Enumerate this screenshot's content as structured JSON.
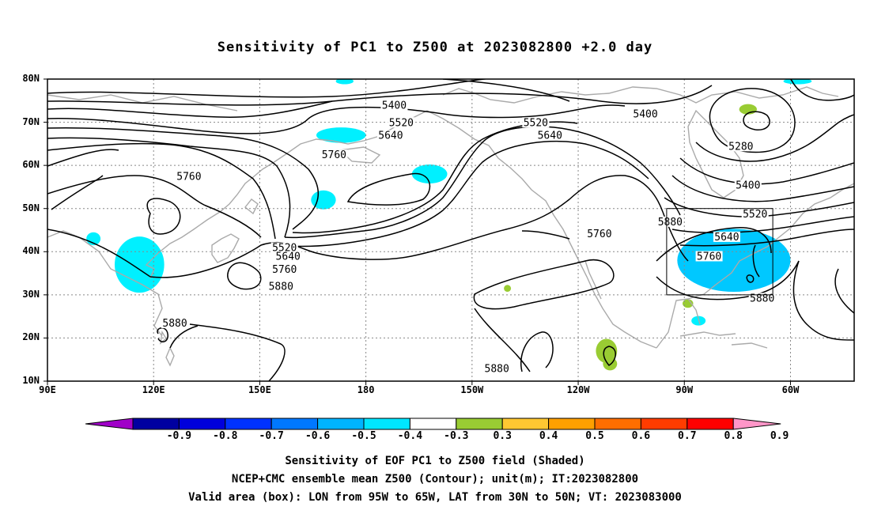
{
  "title": "Sensitivity of PC1 to Z500 at 2023082800 +2.0 day",
  "lat_labels": [
    "80N",
    "70N",
    "60N",
    "50N",
    "40N",
    "30N",
    "20N",
    "10N"
  ],
  "lon_labels": [
    "90E",
    "120E",
    "150E",
    "180",
    "150W",
    "120W",
    "90W",
    "60W"
  ],
  "contour_labels": [
    {
      "text": "5400",
      "lon": -172,
      "lat": 73.5
    },
    {
      "text": "5400",
      "lon": -101,
      "lat": 71.5
    },
    {
      "text": "5280",
      "lon": -74,
      "lat": 64
    },
    {
      "text": "5400",
      "lon": -72,
      "lat": 55
    },
    {
      "text": "5520",
      "lon": -70,
      "lat": 48.3
    },
    {
      "text": "5640",
      "lon": -78,
      "lat": 43
    },
    {
      "text": "5520",
      "lon": -170,
      "lat": 69.5
    },
    {
      "text": "5640",
      "lon": -173,
      "lat": 66.5
    },
    {
      "text": "5520",
      "lon": -132,
      "lat": 69.5
    },
    {
      "text": "5640",
      "lon": -128,
      "lat": 66.5
    },
    {
      "text": "5760",
      "lon": -189,
      "lat": 62
    },
    {
      "text": "5760",
      "lon": -230,
      "lat": 57
    },
    {
      "text": "5520",
      "lon": -203,
      "lat": 40.5
    },
    {
      "text": "5640",
      "lon": -202,
      "lat": 38.5
    },
    {
      "text": "5760",
      "lon": -203,
      "lat": 35.5
    },
    {
      "text": "5880",
      "lon": -204,
      "lat": 31.5
    },
    {
      "text": "5760",
      "lon": -114,
      "lat": 43.7
    },
    {
      "text": "5880",
      "lon": -94,
      "lat": 46.5
    },
    {
      "text": "5760",
      "lon": -83,
      "lat": 38.5
    },
    {
      "text": "5880",
      "lon": -68,
      "lat": 28.8
    },
    {
      "text": "5880",
      "lon": -234,
      "lat": 23
    },
    {
      "text": "5880",
      "lon": -143,
      "lat": 12.5
    }
  ],
  "valid_box": {
    "lon_west": -95,
    "lon_east": -65,
    "lat_south": 30,
    "lat_north": 50
  },
  "shading": [
    {
      "lon": -74,
      "lat": 37,
      "rx": 5,
      "ry": 2.8,
      "color": "#0000d0"
    },
    {
      "lon": -77,
      "lat": 38,
      "rx": 8,
      "ry": 4.5,
      "color": "#0030ff"
    },
    {
      "lon": -76,
      "lat": 38,
      "rx": 11,
      "ry": 5.5,
      "color": "#0064ff"
    },
    {
      "lon": -76,
      "lat": 38,
      "rx": 14,
      "ry": 6.5,
      "color": "#0096ff"
    },
    {
      "lon": -76,
      "lat": 38,
      "rx": 16,
      "ry": 7.3,
      "color": "#00c8ff"
    },
    {
      "lon": -244,
      "lat": 36,
      "rx": 5,
      "ry": 4.5,
      "color": "#00c8ff"
    },
    {
      "lon": -244,
      "lat": 37,
      "rx": 7,
      "ry": 6.5,
      "color": "#00f0ff"
    },
    {
      "lon": -257,
      "lat": 43,
      "rx": 2,
      "ry": 1.5,
      "color": "#00f0ff"
    },
    {
      "lon": -187,
      "lat": 67,
      "rx": 7,
      "ry": 1.8,
      "color": "#00f0ff"
    },
    {
      "lon": -192,
      "lat": 52,
      "rx": 3.5,
      "ry": 2.2,
      "color": "#00f0ff"
    },
    {
      "lon": -162,
      "lat": 58,
      "rx": 5,
      "ry": 2.2,
      "color": "#00f0ff"
    },
    {
      "lon": -186,
      "lat": 79.5,
      "rx": 2.5,
      "ry": 0.7,
      "color": "#00f0ff"
    },
    {
      "lon": -58,
      "lat": 79.5,
      "rx": 4,
      "ry": 0.7,
      "color": "#00f0ff"
    },
    {
      "lon": -86,
      "lat": 24,
      "rx": 2,
      "ry": 1.1,
      "color": "#00f0ff"
    },
    {
      "lon": -112,
      "lat": 17,
      "rx": 3,
      "ry": 2.8,
      "color": "#99cc33"
    },
    {
      "lon": -111,
      "lat": 14,
      "rx": 2,
      "ry": 1.5,
      "color": "#99cc33"
    },
    {
      "lon": -72,
      "lat": 73,
      "rx": 2.5,
      "ry": 1.2,
      "color": "#99cc33"
    },
    {
      "lon": -89,
      "lat": 28,
      "rx": 1.5,
      "ry": 1,
      "color": "#99cc33"
    },
    {
      "lon": -140,
      "lat": 31.5,
      "rx": 1,
      "ry": 0.8,
      "color": "#99cc33"
    }
  ],
  "colorbar": {
    "labels": [
      "-0.9",
      "-0.8",
      "-0.7",
      "-0.6",
      "-0.5",
      "-0.4",
      "-0.3",
      "0.3",
      "0.4",
      "0.5",
      "0.6",
      "0.7",
      "0.8",
      "0.9"
    ],
    "colors": [
      "#a000c8",
      "#0000a0",
      "#0000dc",
      "#0032ff",
      "#0078ff",
      "#00b4ff",
      "#00e6ff",
      "#ffffff",
      "#99cc33",
      "#ffc832",
      "#ffa000",
      "#ff6e00",
      "#ff3c00",
      "#ff0000",
      "#ff96c8"
    ]
  },
  "caption_lines": [
    "Sensitivity of EOF PC1 to Z500 field (Shaded)",
    "NCEP+CMC ensemble mean Z500 (Contour); unit(m); IT:2023082800",
    "Valid area (box): LON from 95W to 65W, LAT from 30N to 50N; VT: 2023083000"
  ]
}
